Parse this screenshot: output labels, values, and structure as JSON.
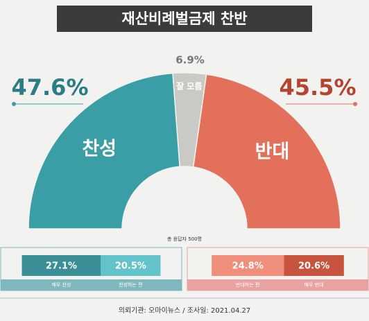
{
  "chart_data": [
    {
      "type": "half-donut",
      "title": "재산비례벌금제 찬반",
      "categories": [
        "찬성",
        "잘 모름",
        "반대"
      ],
      "values": [
        47.6,
        6.9,
        45.5
      ],
      "value_labels": [
        "47.6%",
        "6.9%",
        "45.5%"
      ],
      "colors": [
        "#3a9ea6",
        "#c9c9c6",
        "#e2705a"
      ],
      "note": "총 응답자 500명"
    },
    {
      "type": "bar",
      "categories": [
        "매우 찬성",
        "찬성하는 편",
        "반대하는 편",
        "매우 반대"
      ],
      "values": [
        27.1,
        20.5,
        24.8,
        20.6
      ],
      "value_labels": [
        "27.1%",
        "20.5%",
        "24.8%",
        "20.6%"
      ],
      "colors": [
        "#3a8f97",
        "#62c3cb",
        "#ef8f7b",
        "#c7543e"
      ]
    }
  ],
  "footer": "의뢰기관: 오마이뉴스  /  조사일: 2021.04.27"
}
